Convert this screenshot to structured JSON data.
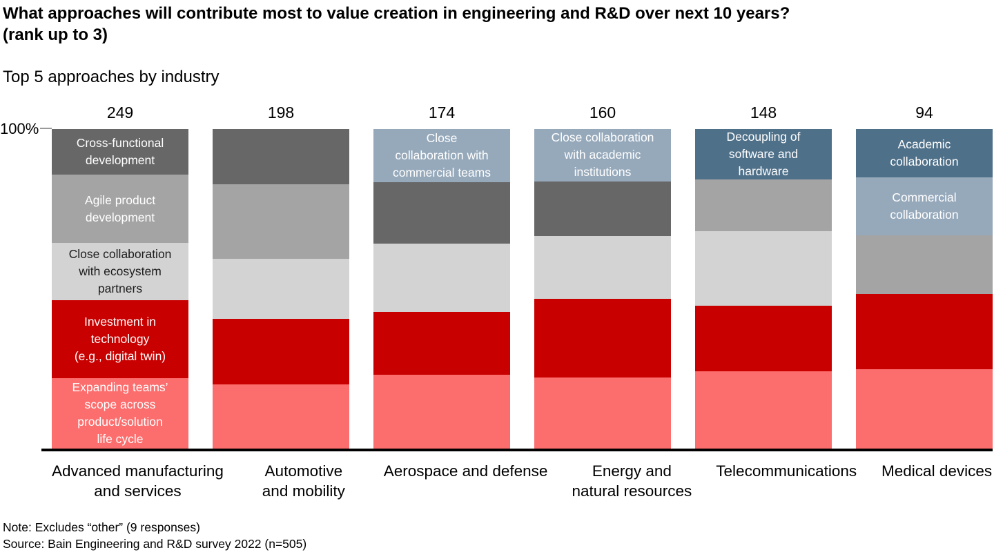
{
  "header": {
    "title_line1": "What approaches will contribute most to value creation in engineering and R&D over next 10 years?",
    "title_line2": "(rank up to 3)",
    "subtitle": "Top 5 approaches by industry"
  },
  "y_axis": {
    "top_label": "100%"
  },
  "footer": {
    "note": "Note: Excludes “other” (9 responses)",
    "source": "Source: Bain Engineering and R&D survey 2022 (n=505)"
  },
  "palette": {
    "dark_gray": "#676767",
    "medium_gray": "#a4a4a4",
    "light_gray": "#d3d3d3",
    "red": "#c80000",
    "pink": "#fc6d6d",
    "blue_light": "#96a9bb",
    "blue_dark": "#4f7089",
    "axis": "#000000"
  },
  "chart_data": {
    "type": "bar",
    "subtype": "100%-stacked-vertical",
    "title": "Top 5 approaches by industry",
    "ylim": [
      0,
      100
    ],
    "y_top_tick": "100%",
    "legend_position": "inline-segment-labels",
    "color_legend_from_labels": {
      "dark_gray": "Cross-functional development",
      "medium_gray": "Agile product development",
      "light_gray": "Close collaboration with ecosystem partners",
      "red": "Investment in technology (e.g., digital twin)",
      "pink": "Expanding teams’ scope across product/solution life cycle"
    },
    "categories": [
      "Advanced manufacturing and services",
      "Automotive and mobility",
      "Aerospace and defense",
      "Energy and natural resources",
      "Telecommunications",
      "Medical devices"
    ],
    "totals": [
      249,
      198,
      174,
      160,
      148,
      94
    ],
    "bars": [
      {
        "category": "Advanced manufacturing and services",
        "category_lines": [
          "Advanced manufacturing",
          "and services"
        ],
        "total": 249,
        "segments": [
          {
            "label": "Cross-functional development",
            "lines": [
              "Cross-functional",
              "development"
            ],
            "color": "dark_gray",
            "pct": 14.3
          },
          {
            "label": "Agile product development",
            "lines": [
              "Agile product",
              "development"
            ],
            "color": "medium_gray",
            "pct": 21.4
          },
          {
            "label": "Close collaboration with ecosystem partners",
            "lines": [
              "Close collaboration",
              "with ecosystem",
              "partners"
            ],
            "color": "light_gray",
            "pct": 17.9
          },
          {
            "label": "Investment in technology (e.g., digital twin)",
            "lines": [
              "Investment in",
              "technology",
              "(e.g., digital twin)"
            ],
            "color": "red",
            "pct": 24.4
          },
          {
            "label": "Expanding teams’ scope across product/solution life cycle",
            "lines": [
              "Expanding teams’",
              "scope across",
              "product/solution",
              "life cycle"
            ],
            "color": "pink",
            "pct": 22.0
          }
        ]
      },
      {
        "category": "Automotive and mobility",
        "category_lines": [
          "Automotive",
          "and mobility"
        ],
        "total": 198,
        "segments": [
          {
            "label": "",
            "lines": [],
            "color": "dark_gray",
            "pct": 17.3
          },
          {
            "label": "",
            "lines": [],
            "color": "medium_gray",
            "pct": 23.3
          },
          {
            "label": "",
            "lines": [],
            "color": "light_gray",
            "pct": 18.8
          },
          {
            "label": "",
            "lines": [],
            "color": "red",
            "pct": 20.5
          },
          {
            "label": "",
            "lines": [],
            "color": "pink",
            "pct": 20.1
          }
        ]
      },
      {
        "category": "Aerospace and defense",
        "category_lines": [
          "Aerospace and defense"
        ],
        "total": 174,
        "segments": [
          {
            "label": "Close collaboration with commercial teams",
            "lines": [
              "Close",
              "collaboration with",
              "commercial teams"
            ],
            "color": "blue_light",
            "pct": 16.6
          },
          {
            "label": "",
            "lines": [],
            "color": "dark_gray",
            "pct": 19.2
          },
          {
            "label": "",
            "lines": [],
            "color": "light_gray",
            "pct": 21.4
          },
          {
            "label": "",
            "lines": [],
            "color": "red",
            "pct": 19.7
          },
          {
            "label": "",
            "lines": [],
            "color": "pink",
            "pct": 23.1
          }
        ]
      },
      {
        "category": "Energy and natural resources",
        "category_lines": [
          "Energy and",
          "natural resources"
        ],
        "total": 160,
        "segments": [
          {
            "label": "Close collaboration with academic institutions",
            "lines": [
              "Close collaboration",
              "with academic",
              "institutions"
            ],
            "color": "blue_light",
            "pct": 16.4
          },
          {
            "label": "",
            "lines": [],
            "color": "dark_gray",
            "pct": 17.1
          },
          {
            "label": "",
            "lines": [],
            "color": "light_gray",
            "pct": 19.7
          },
          {
            "label": "",
            "lines": [],
            "color": "red",
            "pct": 24.6
          },
          {
            "label": "",
            "lines": [],
            "color": "pink",
            "pct": 22.2
          }
        ]
      },
      {
        "category": "Telecommunications",
        "category_lines": [
          "Telecommunications"
        ],
        "total": 148,
        "segments": [
          {
            "label": "Decoupling of software and hardware",
            "lines": [
              "Decoupling of",
              "software and",
              "hardware"
            ],
            "color": "blue_dark",
            "pct": 15.8
          },
          {
            "label": "",
            "lines": [],
            "color": "medium_gray",
            "pct": 16.2
          },
          {
            "label": "",
            "lines": [],
            "color": "light_gray",
            "pct": 23.3
          },
          {
            "label": "",
            "lines": [],
            "color": "red",
            "pct": 20.5
          },
          {
            "label": "",
            "lines": [],
            "color": "pink",
            "pct": 24.2
          }
        ]
      },
      {
        "category": "Medical devices",
        "category_lines": [
          "Medical devices"
        ],
        "total": 94,
        "segments": [
          {
            "label": "Academic collaboration",
            "lines": [
              "Academic",
              "collaboration"
            ],
            "color": "blue_dark",
            "pct": 15.1
          },
          {
            "label": "Commercial collaboration",
            "lines": [
              "Commercial",
              "collaboration"
            ],
            "color": "blue_light",
            "pct": 18.1
          },
          {
            "label": "",
            "lines": [],
            "color": "medium_gray",
            "pct": 18.4
          },
          {
            "label": "",
            "lines": [],
            "color": "red",
            "pct": 23.5
          },
          {
            "label": "",
            "lines": [],
            "color": "pink",
            "pct": 24.9
          }
        ]
      }
    ]
  }
}
